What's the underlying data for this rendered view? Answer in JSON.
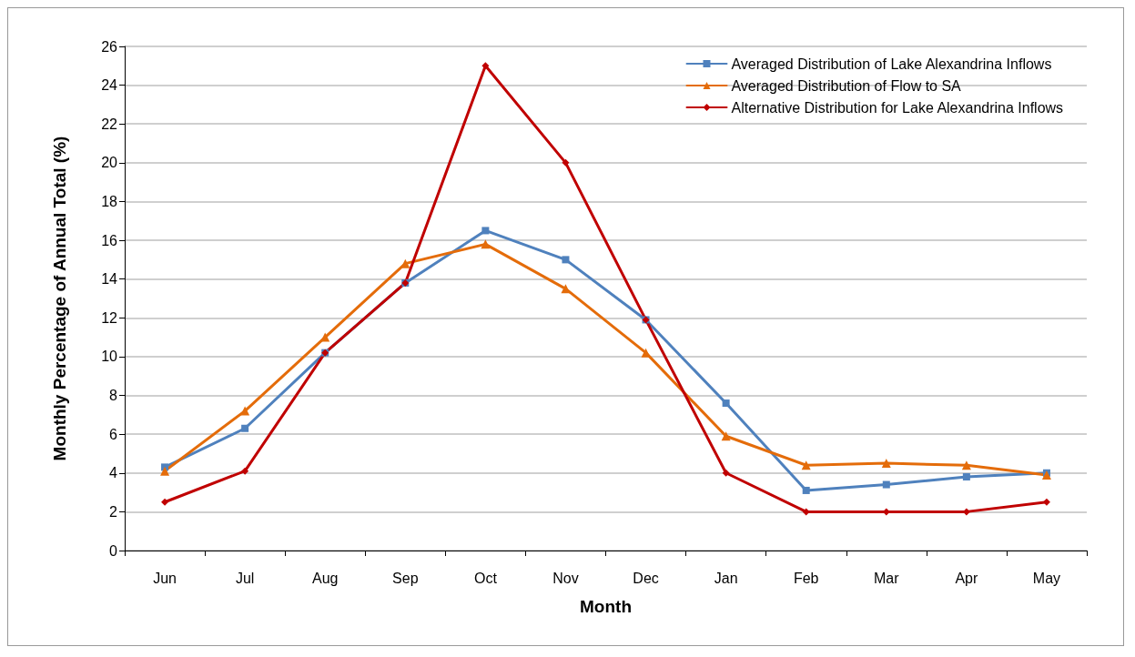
{
  "chart_data": {
    "type": "line",
    "xlabel": "Month",
    "ylabel": "Monthly Percentage of Annual Total (%)",
    "categories": [
      "Jun",
      "Jul",
      "Aug",
      "Sep",
      "Oct",
      "Nov",
      "Dec",
      "Jan",
      "Feb",
      "Mar",
      "Apr",
      "May"
    ],
    "series": [
      {
        "name": "Averaged Distribution of Lake Alexandrina Inflows",
        "color": "#4f81bd",
        "marker": "square",
        "values": [
          4.3,
          6.3,
          10.2,
          13.8,
          16.5,
          15.0,
          11.9,
          7.6,
          3.1,
          3.4,
          3.8,
          4.0
        ]
      },
      {
        "name": "Averaged Distribution of Flow to SA",
        "color": "#e46c0a",
        "marker": "triangle",
        "values": [
          4.1,
          7.2,
          11.0,
          14.8,
          15.8,
          13.5,
          10.2,
          5.9,
          4.4,
          4.5,
          4.4,
          3.9
        ]
      },
      {
        "name": "Alternative Distribution for Lake Alexandrina Inflows",
        "color": "#c00000",
        "marker": "diamond",
        "values": [
          2.5,
          4.1,
          10.2,
          13.8,
          25.0,
          20.0,
          11.9,
          4.0,
          2.0,
          2.0,
          2.0,
          2.5
        ]
      }
    ],
    "ylim": [
      0,
      26
    ],
    "yticks": [
      0,
      2,
      4,
      6,
      8,
      10,
      12,
      14,
      16,
      18,
      20,
      22,
      24,
      26
    ],
    "grid": "y",
    "legend": "top right",
    "line_style": "solid"
  }
}
